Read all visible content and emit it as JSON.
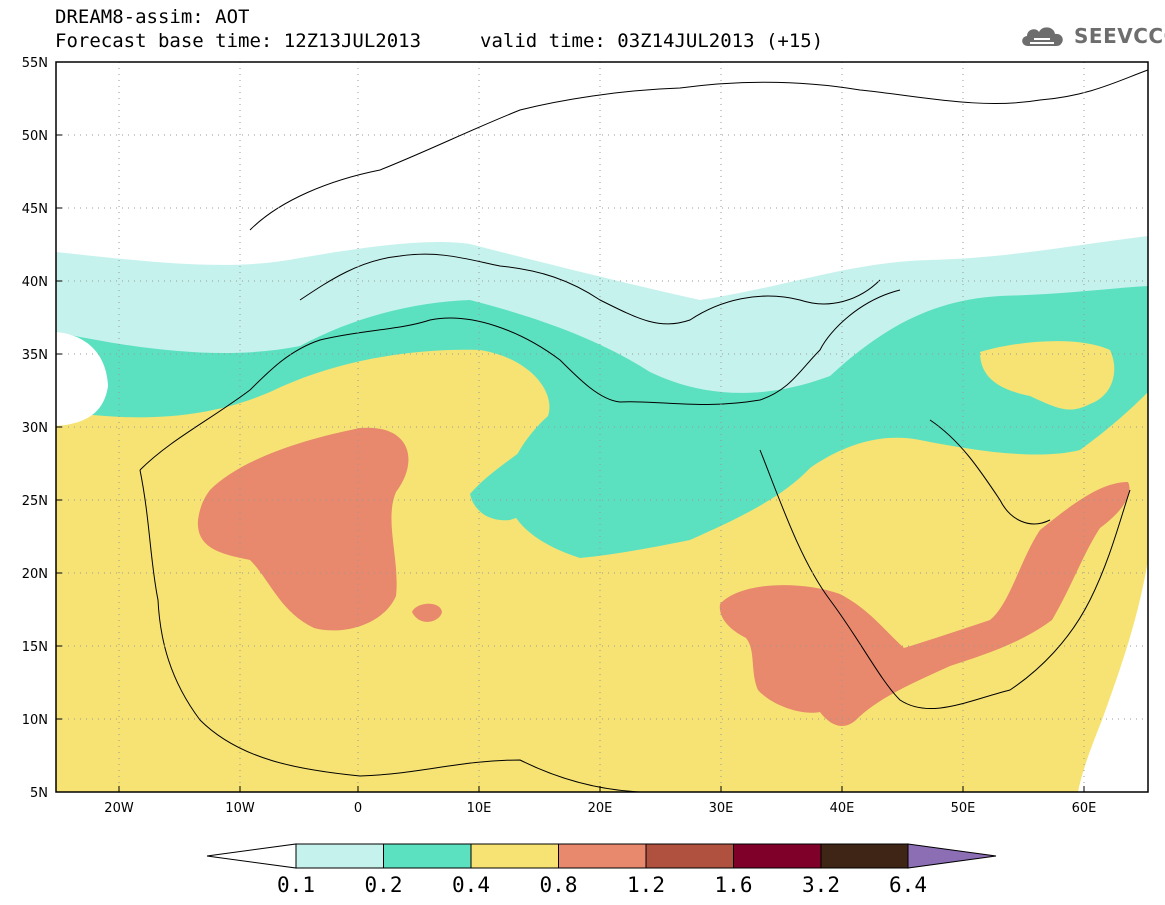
{
  "header": {
    "line1": "DREAM8-assim: AOT",
    "line2": "Forecast base time: 12Z13JUL2013",
    "line3": "valid time: 03Z14JUL2013 (+15)"
  },
  "logo": {
    "text": "SEEVCCC",
    "icon": "cloud-logo-icon"
  },
  "map": {
    "variable": "AOT",
    "lon_range": [
      -25,
      65
    ],
    "lat_range": [
      5,
      55
    ],
    "lat_ticks": [
      "55N",
      "50N",
      "45N",
      "40N",
      "35N",
      "30N",
      "25N",
      "20N",
      "15N",
      "10N",
      "5N"
    ],
    "lon_ticks": [
      "20W",
      "10W",
      "0",
      "10E",
      "20E",
      "30E",
      "40E",
      "50E",
      "60E"
    ],
    "gridlines": "dotted"
  },
  "colorbar": {
    "labels": [
      "0.1",
      "0.2",
      "0.4",
      "0.8",
      "1.2",
      "1.6",
      "3.2",
      "6.4"
    ],
    "colors": [
      "#ffffff",
      "#c6f2ed",
      "#5ce1c0",
      "#f6e374",
      "#e8886c",
      "#b0503f",
      "#7f0029",
      "#3e2515",
      "#8c6eb4"
    ]
  }
}
